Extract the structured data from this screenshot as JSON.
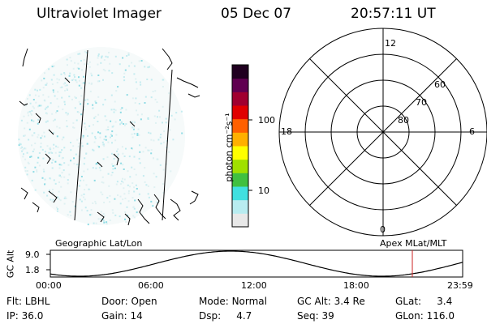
{
  "header": {
    "title": "Ultraviolet Imager",
    "date": "05 Dec 07",
    "time": "20:57:11 UT"
  },
  "image_panel": {
    "label": "Geographic Lat/Lon"
  },
  "colorbar": {
    "unit_label": "photon cm⁻²s⁻¹",
    "tick_labels": [
      "100",
      "10"
    ],
    "colors": [
      "#e8e8e8",
      "#b8ecf0",
      "#40e0e0",
      "#40c040",
      "#a0e000",
      "#ffff00",
      "#ffb000",
      "#ff6000",
      "#e00000",
      "#a00030",
      "#600050",
      "#200020"
    ]
  },
  "polar_plot": {
    "label": "Apex MLat/MLT",
    "mlt_labels": {
      "top": "12",
      "right": "6",
      "bottom": "0",
      "left": "18"
    },
    "lat_labels": [
      "60",
      "70",
      "80"
    ]
  },
  "orbit_plot": {
    "ylabel": "GC Alt",
    "y_ticks": [
      "9.0",
      "1.8"
    ],
    "x_ticks": [
      "00:00",
      "06:00",
      "12:00",
      "18:00",
      "23:59"
    ]
  },
  "info": {
    "row1": [
      {
        "label": "Flt:",
        "value": "LBHL"
      },
      {
        "label": "Door:",
        "value": "Open"
      },
      {
        "label": "Mode:",
        "value": "Normal"
      },
      {
        "label": "GC Alt:",
        "value": "3.4 Re"
      },
      {
        "label": "GLat:",
        "value": "3.4"
      }
    ],
    "row2": [
      {
        "label": "IP:",
        "value": "36.0"
      },
      {
        "label": "Gain:",
        "value": "14"
      },
      {
        "label": "Dsp:",
        "value": "4.7"
      },
      {
        "label": "Seq:",
        "value": "39"
      },
      {
        "label": "GLon:",
        "value": "116.0"
      }
    ]
  }
}
